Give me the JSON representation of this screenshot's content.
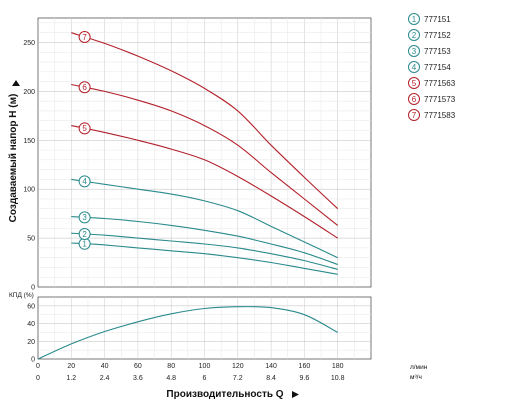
{
  "chart_data": [
    {
      "type": "line",
      "ylabel": "Создаваемый напор H (м)",
      "xlim": [
        0,
        200
      ],
      "ylim": [
        0,
        275
      ],
      "yticks": [
        0,
        50,
        100,
        150,
        200,
        250
      ],
      "grid": true,
      "legend_position": "right",
      "series": [
        {
          "name": "777151",
          "marker": "1",
          "color": "#2a8a8c",
          "x": [
            20,
            40,
            60,
            80,
            100,
            120,
            140,
            160,
            180
          ],
          "y": [
            45,
            43,
            40,
            37,
            34,
            30,
            25,
            19,
            13
          ]
        },
        {
          "name": "777152",
          "marker": "2",
          "color": "#2a8a8c",
          "x": [
            20,
            40,
            60,
            80,
            100,
            120,
            140,
            160,
            180
          ],
          "y": [
            55,
            53,
            50,
            47,
            44,
            40,
            34,
            27,
            18
          ]
        },
        {
          "name": "777153",
          "marker": "3",
          "color": "#2a8a8c",
          "x": [
            20,
            40,
            60,
            80,
            100,
            120,
            140,
            160,
            180
          ],
          "y": [
            72,
            70,
            67,
            63,
            58,
            52,
            44,
            35,
            23
          ]
        },
        {
          "name": "777154",
          "marker": "4",
          "color": "#2a8a8c",
          "x": [
            20,
            40,
            60,
            80,
            100,
            120,
            140,
            160,
            180
          ],
          "y": [
            110,
            105,
            100,
            95,
            88,
            78,
            62,
            46,
            30
          ]
        },
        {
          "name": "7771563",
          "marker": "5",
          "color": "#b3202a",
          "x": [
            20,
            40,
            60,
            80,
            100,
            120,
            140,
            160,
            180
          ],
          "y": [
            165,
            158,
            150,
            141,
            130,
            113,
            93,
            72,
            50
          ]
        },
        {
          "name": "7771573",
          "marker": "6",
          "color": "#b3202a",
          "x": [
            20,
            40,
            60,
            80,
            100,
            120,
            140,
            160,
            180
          ],
          "y": [
            207,
            200,
            191,
            180,
            165,
            145,
            117,
            90,
            63
          ]
        },
        {
          "name": "7771583",
          "marker": "7",
          "color": "#b3202a",
          "x": [
            20,
            40,
            60,
            80,
            100,
            120,
            140,
            160,
            180
          ],
          "y": [
            260,
            249,
            236,
            221,
            203,
            180,
            145,
            112,
            80
          ]
        }
      ]
    },
    {
      "type": "line",
      "ylabel": "КПД (%)",
      "xlabel": "Производительность Q",
      "x_units": [
        "л/мин",
        "м³/ч"
      ],
      "xlim": [
        0,
        200
      ],
      "ylim": [
        0,
        70
      ],
      "yticks": [
        0,
        20,
        40,
        60
      ],
      "xticks": [
        0,
        20,
        40,
        60,
        80,
        100,
        120,
        140,
        160,
        180
      ],
      "xticks_secondary": [
        "0",
        "1.2",
        "2.4",
        "3.6",
        "4.8",
        "6",
        "7.2",
        "8.4",
        "9.6",
        "10.8"
      ],
      "grid": true,
      "series": [
        {
          "color": "#2a8a8c",
          "x": [
            0,
            20,
            40,
            60,
            80,
            100,
            120,
            140,
            160,
            180
          ],
          "y": [
            0,
            17,
            31,
            42,
            51,
            57,
            59,
            58,
            50,
            30
          ]
        }
      ]
    }
  ]
}
